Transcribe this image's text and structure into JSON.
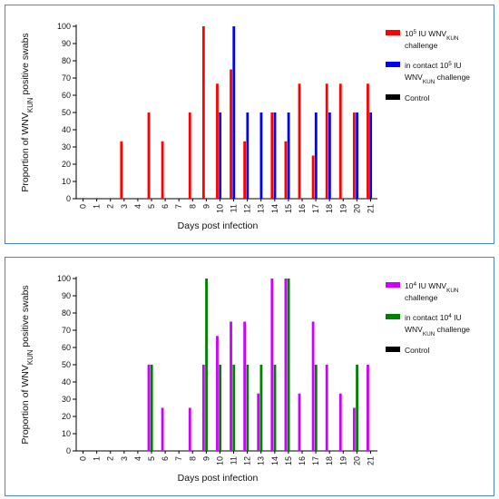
{
  "chart_data": [
    {
      "type": "bar",
      "xlabel": "Days post infection",
      "ylabel": "Proportion of WNVKUN positive swabs",
      "ylabel_parts": [
        {
          "t": "Proportion of WNV"
        },
        {
          "t": "KUN",
          "sub": true
        },
        {
          "t": " positive swabs"
        }
      ],
      "ylim": [
        0,
        100
      ],
      "yticks": [
        "0",
        "10",
        "20",
        "30",
        "40",
        "50",
        "60",
        "70",
        "80",
        "90",
        "100"
      ],
      "categories": [
        "0",
        "1",
        "2",
        "3",
        "4",
        "5",
        "6",
        "7",
        "8",
        "9",
        "10",
        "11",
        "12",
        "13",
        "14",
        "15",
        "16",
        "17",
        "18",
        "19",
        "20",
        "21"
      ],
      "series": [
        {
          "name": "105 IU WNVKUN challenge",
          "color": "#ff0000",
          "legend": [
            [
              {
                "t": "10"
              },
              {
                "t": "5",
                "sup": true
              },
              {
                "t": " IU WNV"
              },
              {
                "t": "KUN",
                "sub": true
              }
            ],
            [
              {
                "t": "challenge"
              }
            ]
          ],
          "values": [
            0,
            0,
            0,
            33.3,
            0,
            50,
            33.3,
            0,
            50,
            100,
            66.7,
            75,
            33.3,
            0,
            50,
            33.3,
            66.7,
            25,
            66.7,
            66.7,
            50,
            66.7
          ]
        },
        {
          "name": "in contact 105 IU WNVKUN challenge",
          "color": "#0000ff",
          "legend": [
            [
              {
                "t": "in contact 10"
              },
              {
                "t": "5",
                "sup": true
              },
              {
                "t": " IU"
              }
            ],
            [
              {
                "t": "WNV"
              },
              {
                "t": "KUN",
                "sub": true
              },
              {
                "t": " challenge"
              }
            ]
          ],
          "values": [
            0,
            0,
            0,
            0,
            0,
            0,
            0,
            0,
            0,
            0,
            50,
            100,
            50,
            50,
            50,
            50,
            0,
            50,
            50,
            0,
            50,
            50
          ]
        },
        {
          "name": "Control",
          "color": "#000000",
          "legend": [
            [
              {
                "t": "Control"
              }
            ]
          ],
          "values": [
            0,
            0,
            0,
            0,
            0,
            0,
            0,
            0,
            0,
            0,
            0,
            0,
            0,
            0,
            0,
            0,
            0,
            0,
            0,
            0,
            0,
            0
          ]
        }
      ]
    },
    {
      "type": "bar",
      "xlabel": "Days post infection",
      "ylabel": "Proportion of WNVKUN positive swabs",
      "ylabel_parts": [
        {
          "t": "Proportion of WNV"
        },
        {
          "t": "KUN",
          "sub": true
        },
        {
          "t": " positive swabs"
        }
      ],
      "ylim": [
        0,
        100
      ],
      "yticks": [
        "0",
        "10",
        "20",
        "30",
        "40",
        "50",
        "60",
        "70",
        "80",
        "90",
        "100"
      ],
      "categories": [
        "0",
        "1",
        "2",
        "3",
        "4",
        "5",
        "6",
        "7",
        "8",
        "9",
        "10",
        "11",
        "12",
        "13",
        "14",
        "15",
        "16",
        "17",
        "18",
        "19",
        "20",
        "21"
      ],
      "series": [
        {
          "name": "104 IU WNVKUN challenge",
          "color": "#cc00ff",
          "legend": [
            [
              {
                "t": "10"
              },
              {
                "t": "4",
                "sup": true
              },
              {
                "t": " IU WNV"
              },
              {
                "t": "KUN",
                "sub": true
              }
            ],
            [
              {
                "t": "challenge"
              }
            ]
          ],
          "values": [
            0,
            0,
            0,
            0,
            0,
            50,
            25,
            0,
            25,
            50,
            66.7,
            75,
            75,
            33.3,
            100,
            100,
            33.3,
            75,
            50,
            33.3,
            25,
            50
          ]
        },
        {
          "name": "in contact 104 IU WNVKUN challenge",
          "color": "#008000",
          "legend": [
            [
              {
                "t": "in contact 10"
              },
              {
                "t": "4",
                "sup": true
              },
              {
                "t": " IU"
              }
            ],
            [
              {
                "t": "WNV"
              },
              {
                "t": "KUN",
                "sub": true
              },
              {
                "t": " challenge"
              }
            ]
          ],
          "values": [
            0,
            0,
            0,
            0,
            0,
            50,
            0,
            0,
            0,
            100,
            50,
            50,
            50,
            50,
            50,
            100,
            0,
            50,
            0,
            0,
            50,
            0
          ]
        },
        {
          "name": "Control",
          "color": "#000000",
          "legend": [
            [
              {
                "t": "Control"
              }
            ]
          ],
          "values": [
            0,
            0,
            0,
            0,
            0,
            0,
            0,
            0,
            0,
            0,
            0,
            0,
            0,
            0,
            0,
            0,
            0,
            0,
            0,
            0,
            0,
            0
          ]
        }
      ]
    }
  ]
}
